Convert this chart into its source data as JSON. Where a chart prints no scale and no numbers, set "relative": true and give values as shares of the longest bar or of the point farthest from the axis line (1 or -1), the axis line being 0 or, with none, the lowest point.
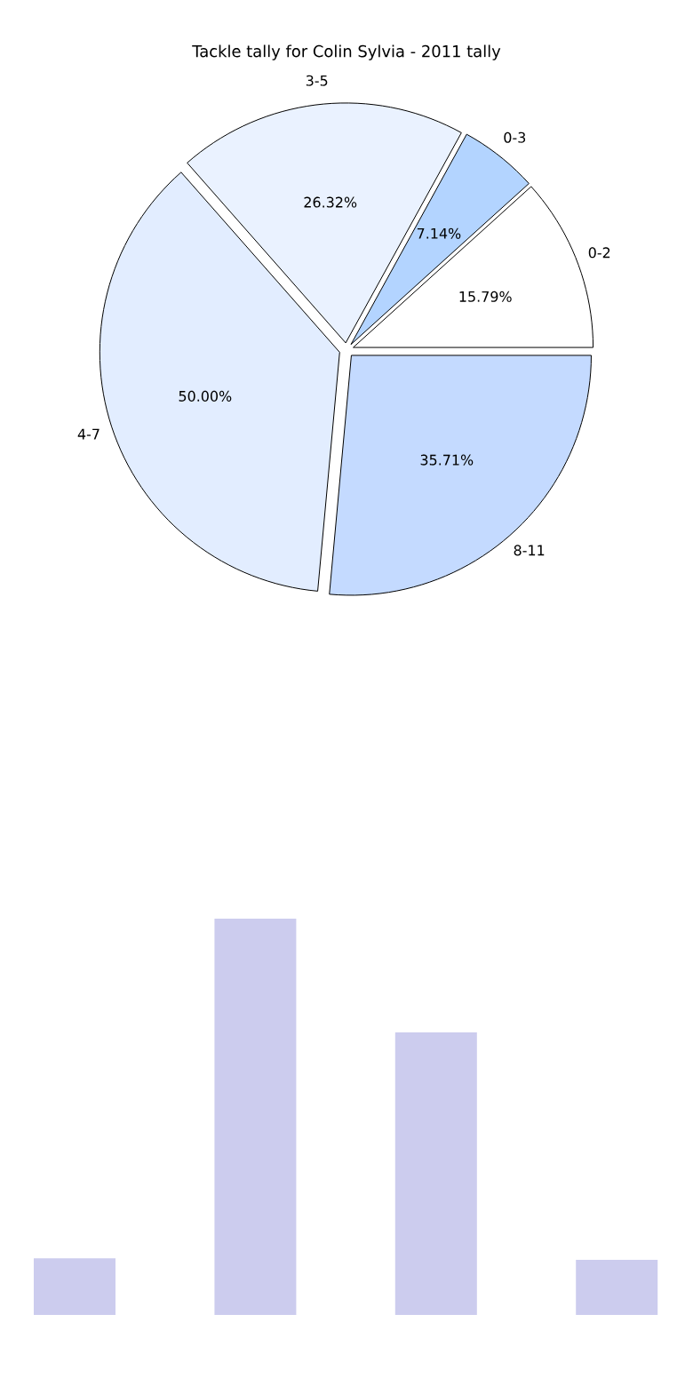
{
  "chart_data": [
    {
      "type": "pie",
      "title": "Tackle tally for Colin Sylvia - 2011 tally",
      "categories": [
        "0-2",
        "0-3",
        "3-5",
        "4-7",
        "8-11"
      ],
      "values": [
        15.79,
        7.14,
        26.32,
        50.0,
        35.71
      ],
      "value_labels": [
        "15.79%",
        "7.14%",
        "26.32%",
        "50.00%",
        "35.71%"
      ],
      "colors": [
        "#ffffff",
        "#b3d4ff",
        "#eaf2ff",
        "#e2edff",
        "#c4daff"
      ]
    },
    {
      "type": "bar",
      "relative": true,
      "categories": [
        null,
        null,
        null,
        null
      ],
      "values": [
        0.143,
        1,
        0.713,
        0.139
      ],
      "color": "#ccccee"
    }
  ]
}
